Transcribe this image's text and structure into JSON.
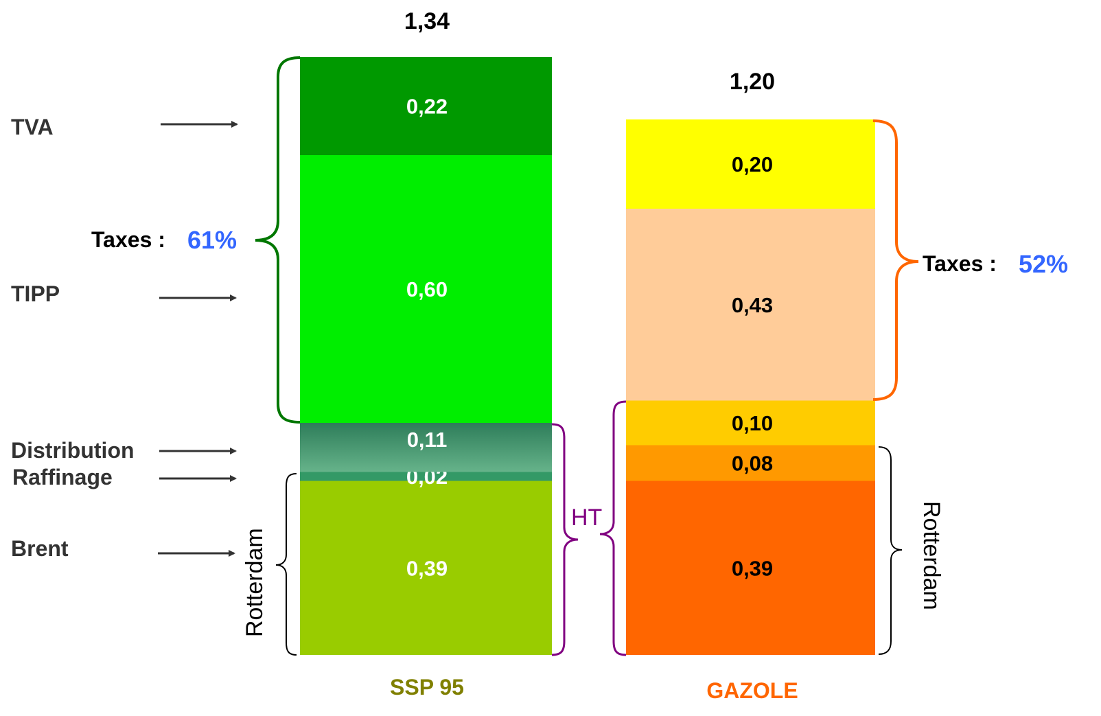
{
  "chart_data": {
    "type": "bar",
    "stacked": true,
    "unit_note": "",
    "categories": [
      "SSP 95",
      "GAZOLE"
    ],
    "totals": [
      "1,34",
      "1,20"
    ],
    "bars": [
      {
        "name": "SSP 95",
        "label_color": "#808000",
        "total_label": "1,34",
        "segments": [
          {
            "label": "Brent",
            "value": 0.39,
            "value_label": "0,39",
            "color": "#99cc00",
            "text_color": "#ffffff"
          },
          {
            "label": "Raffinage",
            "value": 0.02,
            "value_label": "0,02",
            "color": "#339966",
            "text_color": "#ffffff"
          },
          {
            "label": "Distribution",
            "value": 0.11,
            "value_label": "0,11",
            "color": "#66b38a",
            "gradient_top": "#2e7d5a",
            "text_color": "#ffffff"
          },
          {
            "label": "TIPP",
            "value": 0.6,
            "value_label": "0,60",
            "color": "#00ee00",
            "text_color": "#ffffff"
          },
          {
            "label": "TVA",
            "value": 0.22,
            "value_label": "0,22",
            "color": "#009900",
            "text_color": "#ffffff"
          }
        ]
      },
      {
        "name": "GAZOLE",
        "label_color": "#ff6600",
        "total_label": "1,20",
        "segments": [
          {
            "label": "Brent",
            "value": 0.39,
            "value_label": "0,39",
            "color": "#ff6600",
            "text_color": "#000000"
          },
          {
            "label": "Raffinage",
            "value": 0.08,
            "value_label": "0,08",
            "color": "#ff9900",
            "text_color": "#000000"
          },
          {
            "label": "Distribution",
            "value": 0.1,
            "value_label": "0,10",
            "color": "#ffcc00",
            "text_color": "#000000"
          },
          {
            "label": "TIPP",
            "value": 0.43,
            "value_label": "0,43",
            "color": "#ffcc99",
            "text_color": "#000000"
          },
          {
            "label": "TVA",
            "value": 0.2,
            "value_label": "0,20",
            "color": "#ffff00",
            "text_color": "#000000"
          }
        ]
      }
    ],
    "row_labels": [
      "TVA",
      "TIPP",
      "Distribution",
      "Raffinage",
      "Brent"
    ],
    "annotations": {
      "taxes_label": "Taxes :",
      "taxes_ssp_pct": "61%",
      "taxes_gazole_pct": "52%",
      "pct_color": "#3366ff",
      "ht_label": "HT",
      "ht_color": "#800080",
      "rotterdam_label": "Rotterdam",
      "brace_ssp_color": "#007700",
      "brace_gazole_color": "#ff6600"
    }
  }
}
